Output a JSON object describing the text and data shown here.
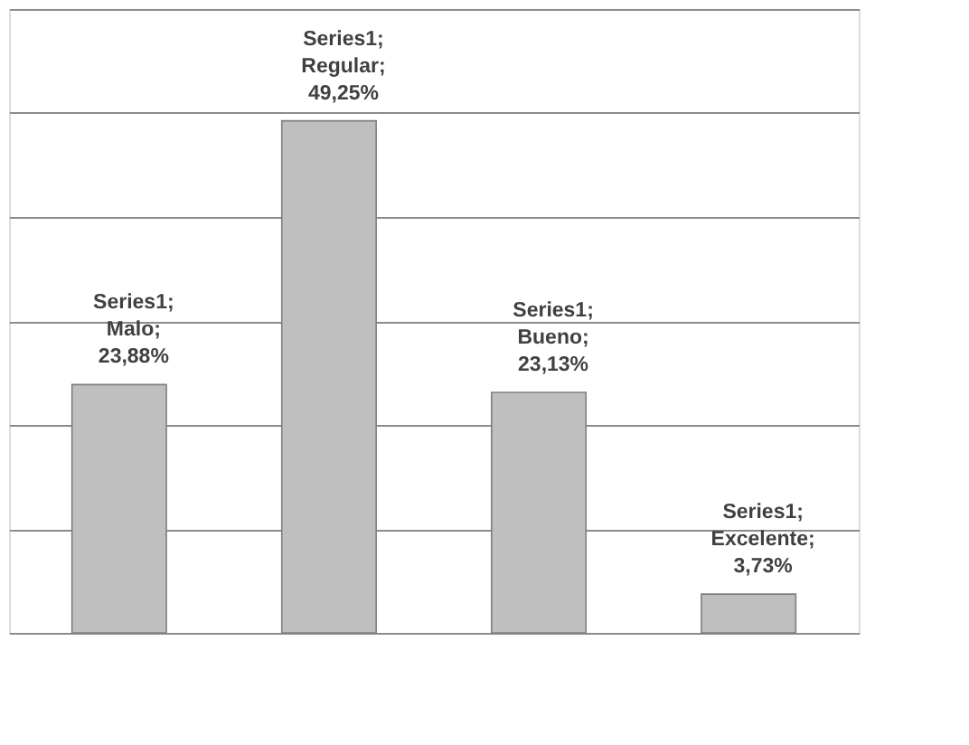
{
  "chart_data": {
    "type": "bar",
    "categories": [
      null,
      null,
      null,
      null
    ],
    "series": [
      {
        "color": "#bfbfbf",
        "values": [
          23.88,
          49.25,
          23.13,
          3.73
        ],
        "value_labels": [
          "Series1; Malo; 23,88%",
          "Series1; Regular; 49,25%",
          "Series1; Bueno; 23,13%",
          "Series1; Excelente; 3,73%"
        ]
      }
    ],
    "ylim": [
      0,
      60
    ],
    "yticks": [
      {
        "value": 0,
        "label": null
      },
      {
        "value": 10,
        "label": null
      },
      {
        "value": 20,
        "label": null
      },
      {
        "value": 30,
        "label": null
      },
      {
        "value": 40,
        "label": null
      },
      {
        "value": 50,
        "label": null
      },
      {
        "value": 60,
        "label": null
      }
    ],
    "grid": "y",
    "tick_labels": false
  }
}
